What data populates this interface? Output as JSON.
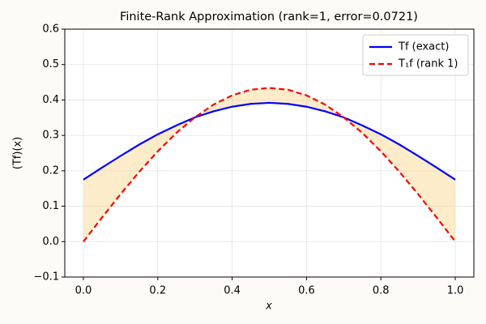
{
  "chart_data": {
    "type": "line",
    "title": "Finite-Rank Approximation (rank=1, error=0.0721)",
    "x_label": "x",
    "y_label": "(Tf)(x)",
    "x": [
      0,
      0.05,
      0.1,
      0.15,
      0.2,
      0.25,
      0.3,
      0.35,
      0.4,
      0.45,
      0.5,
      0.55,
      0.6,
      0.65,
      0.7,
      0.75,
      0.8,
      0.85,
      0.9,
      0.95,
      1
    ],
    "series": [
      {
        "name": "Tf (exact)",
        "color": "#0000ff",
        "linestyle": "solid",
        "values": [
          0.175,
          0.209,
          0.242,
          0.274,
          0.303,
          0.328,
          0.351,
          0.368,
          0.381,
          0.389,
          0.392,
          0.389,
          0.381,
          0.368,
          0.351,
          0.328,
          0.303,
          0.274,
          0.242,
          0.209,
          0.175
        ]
      },
      {
        "name": "T₁f (rank 1)",
        "color": "#ff0000",
        "linestyle": "dashed",
        "values": [
          0,
          0.068,
          0.134,
          0.197,
          0.255,
          0.307,
          0.351,
          0.387,
          0.413,
          0.429,
          0.434,
          0.429,
          0.413,
          0.387,
          0.351,
          0.307,
          0.255,
          0.197,
          0.134,
          0.068,
          0
        ]
      }
    ],
    "fill_between_color": "#fbd58a",
    "xlim": [
      -0.05,
      1.05
    ],
    "xticks": [
      {
        "value": 0,
        "label": "0.0"
      },
      {
        "value": 0.2,
        "label": "0.2"
      },
      {
        "value": 0.4,
        "label": "0.4"
      },
      {
        "value": 0.6,
        "label": "0.6"
      },
      {
        "value": 0.8,
        "label": "0.8"
      },
      {
        "value": 1,
        "label": "1.0"
      }
    ],
    "ylim": [
      -0.1,
      0.6
    ],
    "yticks": [
      {
        "value": -0.1,
        "label": "−0.1"
      },
      {
        "value": 0,
        "label": "0.0"
      },
      0.1,
      0.2,
      0.3,
      0.4,
      0.5,
      0.6
    ],
    "grid": true,
    "legend": "upper right"
  }
}
